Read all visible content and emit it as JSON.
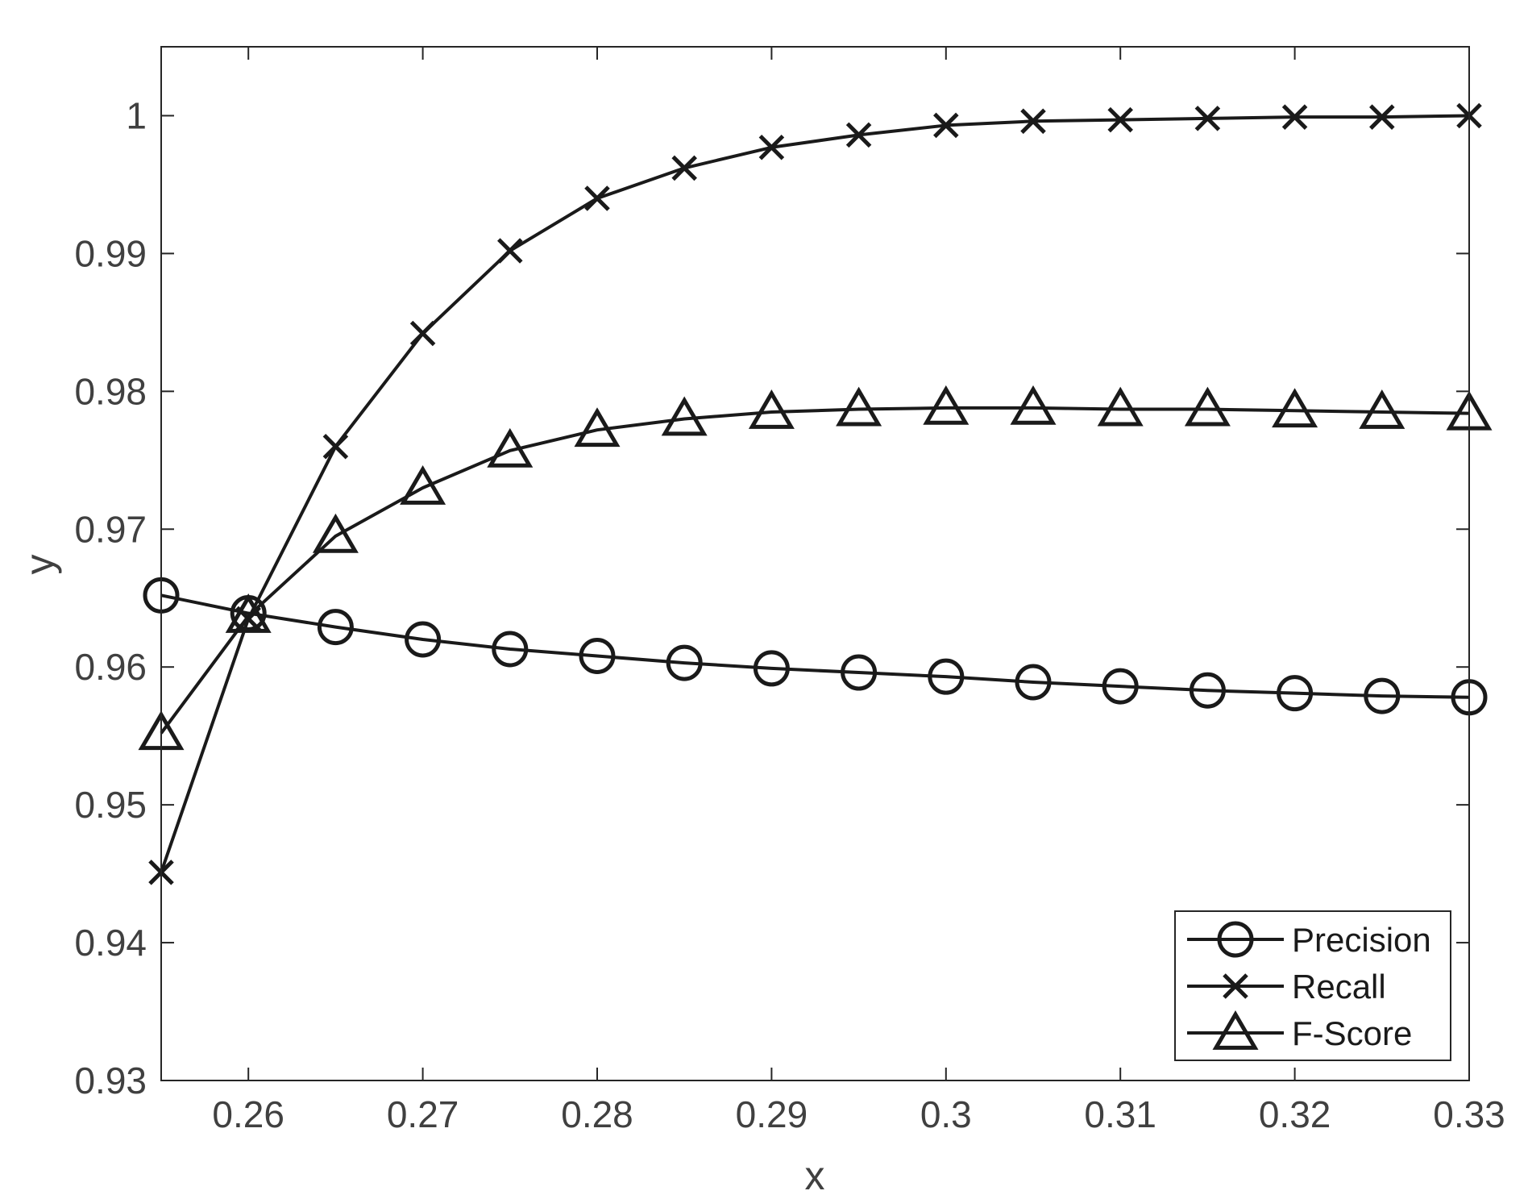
{
  "chart_data": {
    "type": "line",
    "title": "",
    "xlabel": "x",
    "ylabel": "y",
    "xlim": [
      0.255,
      0.33
    ],
    "ylim": [
      0.93,
      1.005
    ],
    "xticks": [
      0.26,
      0.27,
      0.28,
      0.29,
      0.3,
      0.31,
      0.32,
      0.33
    ],
    "xtick_labels": [
      "0.26",
      "0.27",
      "0.28",
      "0.29",
      "0.3",
      "0.31",
      "0.32",
      "0.33"
    ],
    "yticks": [
      0.93,
      0.94,
      0.95,
      0.96,
      0.97,
      0.98,
      0.99,
      1.0
    ],
    "ytick_labels": [
      "0.93",
      "0.94",
      "0.95",
      "0.96",
      "0.97",
      "0.98",
      "0.99",
      "1"
    ],
    "grid": false,
    "legend_position": "bottom-right",
    "line_color": "#1a1a1a",
    "x": [
      0.255,
      0.26,
      0.265,
      0.27,
      0.275,
      0.28,
      0.285,
      0.29,
      0.295,
      0.3,
      0.305,
      0.31,
      0.315,
      0.32,
      0.325,
      0.33
    ],
    "series": [
      {
        "name": "Precision",
        "marker": "circle",
        "values": [
          0.9652,
          0.9639,
          0.9629,
          0.962,
          0.9613,
          0.9608,
          0.9603,
          0.9599,
          0.9596,
          0.9593,
          0.9589,
          0.9586,
          0.9583,
          0.9581,
          0.9579,
          0.9578
        ]
      },
      {
        "name": "Recall",
        "marker": "x",
        "values": [
          0.9451,
          0.9635,
          0.976,
          0.9842,
          0.9902,
          0.994,
          0.9962,
          0.9977,
          0.9986,
          0.9993,
          0.9996,
          0.9997,
          0.9998,
          0.9999,
          0.9999,
          1.0
        ]
      },
      {
        "name": "F-Score",
        "marker": "triangle",
        "values": [
          0.9552,
          0.9637,
          0.9695,
          0.973,
          0.9757,
          0.9772,
          0.978,
          0.9785,
          0.9787,
          0.9788,
          0.9788,
          0.9787,
          0.9787,
          0.9786,
          0.9785,
          0.9784
        ]
      }
    ]
  }
}
